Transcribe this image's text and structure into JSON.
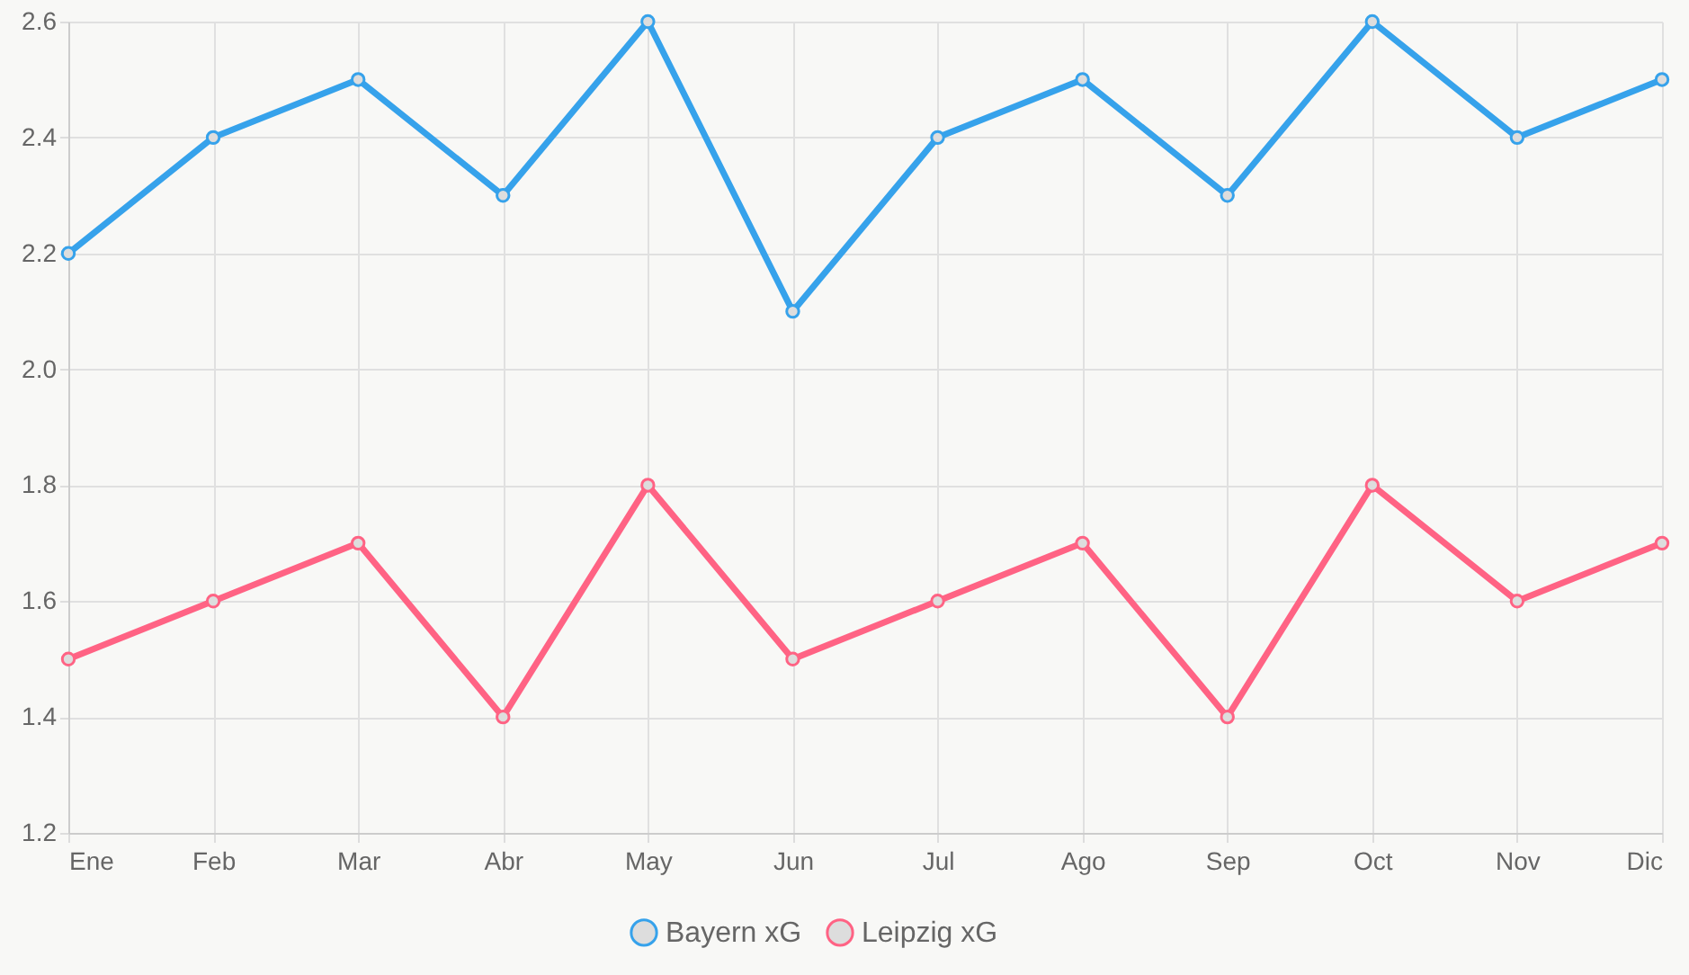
{
  "chart_data": {
    "type": "line",
    "categories": [
      "Ene",
      "Feb",
      "Mar",
      "Abr",
      "May",
      "Jun",
      "Jul",
      "Ago",
      "Sep",
      "Oct",
      "Nov",
      "Dic"
    ],
    "series": [
      {
        "name": "Bayern xG",
        "color": "#36a2eb",
        "values": [
          2.2,
          2.4,
          2.5,
          2.3,
          2.6,
          2.1,
          2.4,
          2.5,
          2.3,
          2.6,
          2.4,
          2.5
        ]
      },
      {
        "name": "Leipzig xG",
        "color": "#ff6384",
        "values": [
          1.5,
          1.6,
          1.7,
          1.4,
          1.8,
          1.5,
          1.6,
          1.7,
          1.4,
          1.8,
          1.6,
          1.7
        ]
      }
    ],
    "ylim": [
      1.2,
      2.6
    ],
    "yticks": [
      1.2,
      1.4,
      1.6,
      1.8,
      {
        "value": 2,
        "label": "2.0"
      },
      2.2,
      2.4,
      2.6
    ],
    "grid": true,
    "legend": "bottom",
    "marker": "circle",
    "line_style": "solid"
  }
}
